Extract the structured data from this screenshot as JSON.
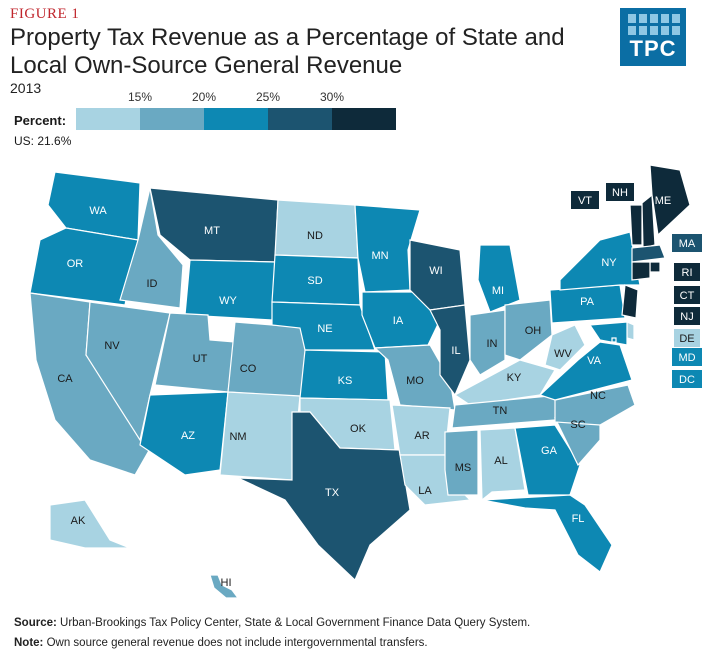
{
  "figure_label": "FIGURE 1",
  "title": "Property Tax Revenue as a Percentage of State and Local Own-Source General Revenue",
  "year": "2013",
  "logo_text": "TPC",
  "legend": {
    "label": "Percent:",
    "us_value": "US: 21.6%",
    "ticks": [
      "15%",
      "20%",
      "25%",
      "30%"
    ],
    "colors": [
      "#a8d3e2",
      "#6aa9c2",
      "#0d88b3",
      "#1c5470",
      "#0e2a3a"
    ]
  },
  "footer": {
    "source_label": "Source:",
    "source_text": "Urban-Brookings Tax Policy Center, State & Local Government Finance Data Query System.",
    "note_label": "Note:",
    "note_text": "Own source general revenue does not include intergovernmental transfers."
  },
  "states": [
    {
      "abbr": "WA",
      "bin": 2
    },
    {
      "abbr": "OR",
      "bin": 2
    },
    {
      "abbr": "CA",
      "bin": 1
    },
    {
      "abbr": "ID",
      "bin": 1
    },
    {
      "abbr": "NV",
      "bin": 1
    },
    {
      "abbr": "MT",
      "bin": 3
    },
    {
      "abbr": "WY",
      "bin": 2
    },
    {
      "abbr": "UT",
      "bin": 1
    },
    {
      "abbr": "AZ",
      "bin": 2
    },
    {
      "abbr": "CO",
      "bin": 1
    },
    {
      "abbr": "NM",
      "bin": 0
    },
    {
      "abbr": "ND",
      "bin": 0
    },
    {
      "abbr": "SD",
      "bin": 2
    },
    {
      "abbr": "NE",
      "bin": 2
    },
    {
      "abbr": "KS",
      "bin": 2
    },
    {
      "abbr": "OK",
      "bin": 0
    },
    {
      "abbr": "TX",
      "bin": 3
    },
    {
      "abbr": "MN",
      "bin": 2
    },
    {
      "abbr": "IA",
      "bin": 2
    },
    {
      "abbr": "MO",
      "bin": 1
    },
    {
      "abbr": "AR",
      "bin": 0
    },
    {
      "abbr": "LA",
      "bin": 0
    },
    {
      "abbr": "WI",
      "bin": 3
    },
    {
      "abbr": "IL",
      "bin": 3
    },
    {
      "abbr": "MI",
      "bin": 2
    },
    {
      "abbr": "IN",
      "bin": 1
    },
    {
      "abbr": "OH",
      "bin": 1
    },
    {
      "abbr": "KY",
      "bin": 0
    },
    {
      "abbr": "TN",
      "bin": 1
    },
    {
      "abbr": "MS",
      "bin": 1
    },
    {
      "abbr": "AL",
      "bin": 0
    },
    {
      "abbr": "GA",
      "bin": 2
    },
    {
      "abbr": "FL",
      "bin": 2
    },
    {
      "abbr": "SC",
      "bin": 1
    },
    {
      "abbr": "NC",
      "bin": 1
    },
    {
      "abbr": "VA",
      "bin": 2
    },
    {
      "abbr": "WV",
      "bin": 0
    },
    {
      "abbr": "PA",
      "bin": 2
    },
    {
      "abbr": "NY",
      "bin": 2
    },
    {
      "abbr": "VT",
      "bin": 4
    },
    {
      "abbr": "NH",
      "bin": 4
    },
    {
      "abbr": "ME",
      "bin": 4
    },
    {
      "abbr": "MA",
      "bin": 3
    },
    {
      "abbr": "RI",
      "bin": 4
    },
    {
      "abbr": "CT",
      "bin": 4
    },
    {
      "abbr": "NJ",
      "bin": 4
    },
    {
      "abbr": "DE",
      "bin": 0
    },
    {
      "abbr": "MD",
      "bin": 2
    },
    {
      "abbr": "DC",
      "bin": 2
    },
    {
      "abbr": "AK",
      "bin": 0
    },
    {
      "abbr": "HI",
      "bin": 1
    }
  ]
}
